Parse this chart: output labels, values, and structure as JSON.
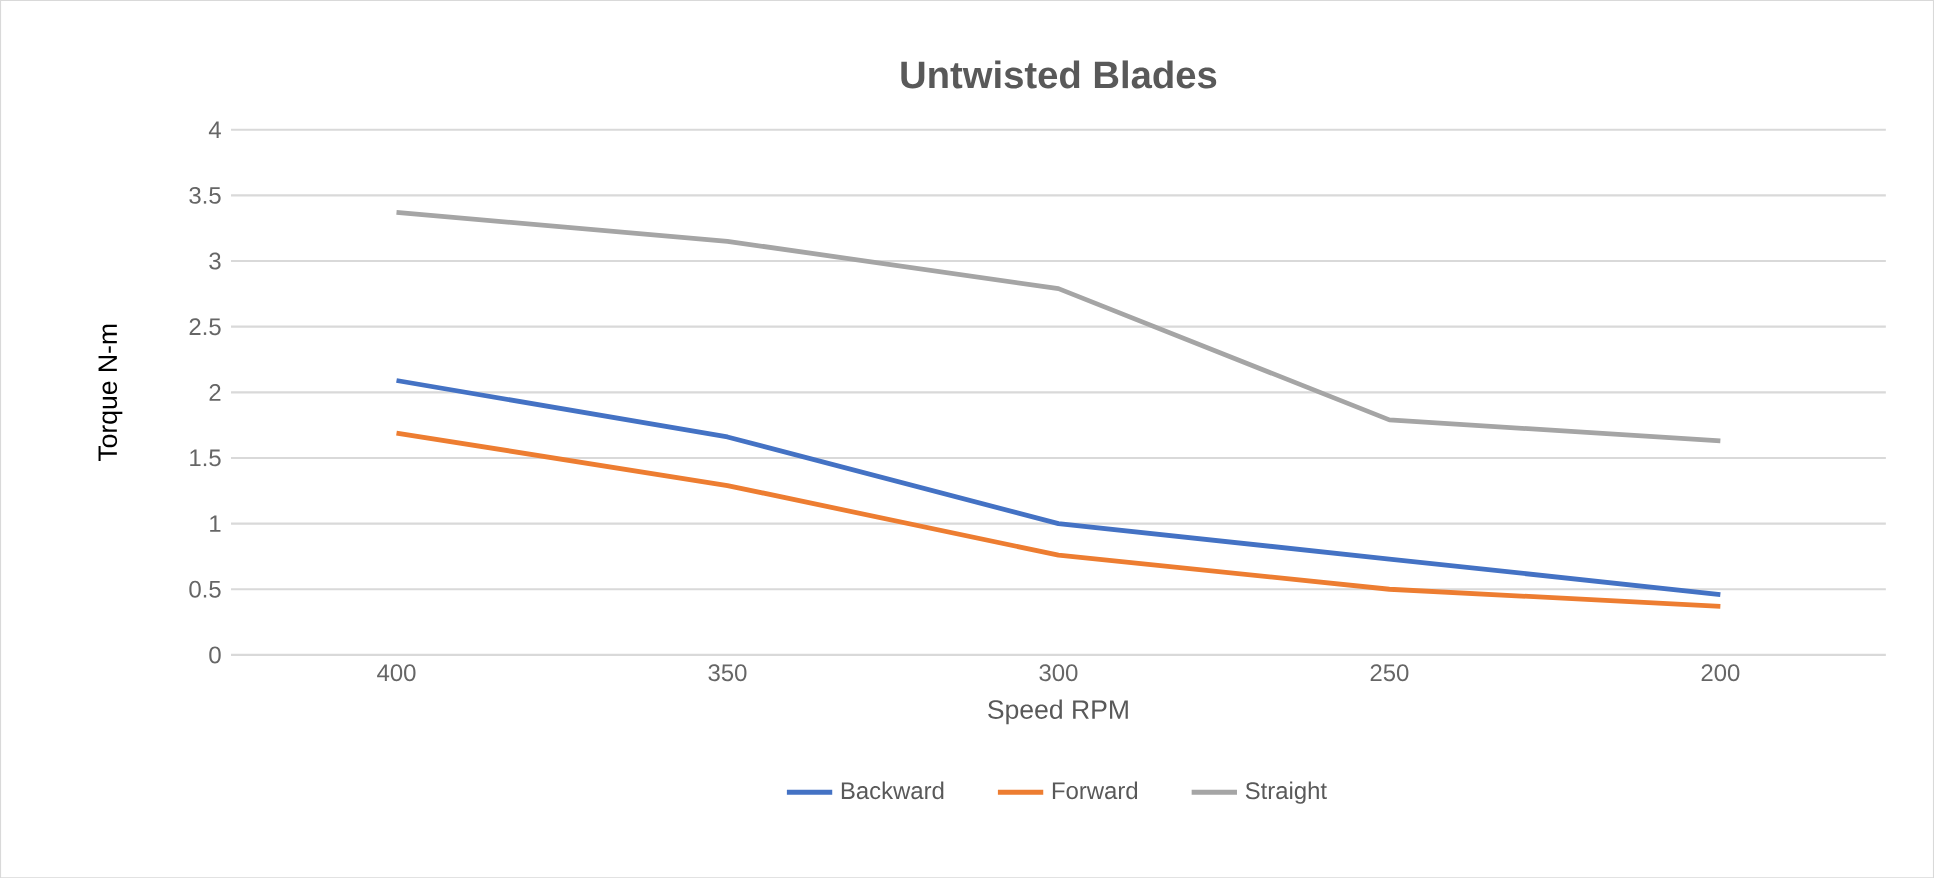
{
  "chart_data": {
    "type": "line",
    "title": "Untwisted Blades",
    "xlabel": "Speed RPM",
    "ylabel": "Torque N-m",
    "categories": [
      "400",
      "350",
      "300",
      "250",
      "200"
    ],
    "series": [
      {
        "name": "Backward",
        "color": "#4472c4",
        "values": [
          2.09,
          1.66,
          1.0,
          0.73,
          0.46
        ]
      },
      {
        "name": "Forward",
        "color": "#ed7d31",
        "values": [
          1.69,
          1.29,
          0.76,
          0.5,
          0.37
        ]
      },
      {
        "name": "Straight",
        "color": "#a5a5a5",
        "values": [
          3.37,
          3.15,
          2.79,
          1.79,
          1.63
        ]
      }
    ],
    "ylim": [
      0,
      4
    ],
    "yticks": [
      0,
      0.5,
      1,
      1.5,
      2,
      2.5,
      3,
      3.5,
      4
    ],
    "grid": "y",
    "legend": "bottom",
    "marker": "none",
    "line_style": "solid"
  }
}
